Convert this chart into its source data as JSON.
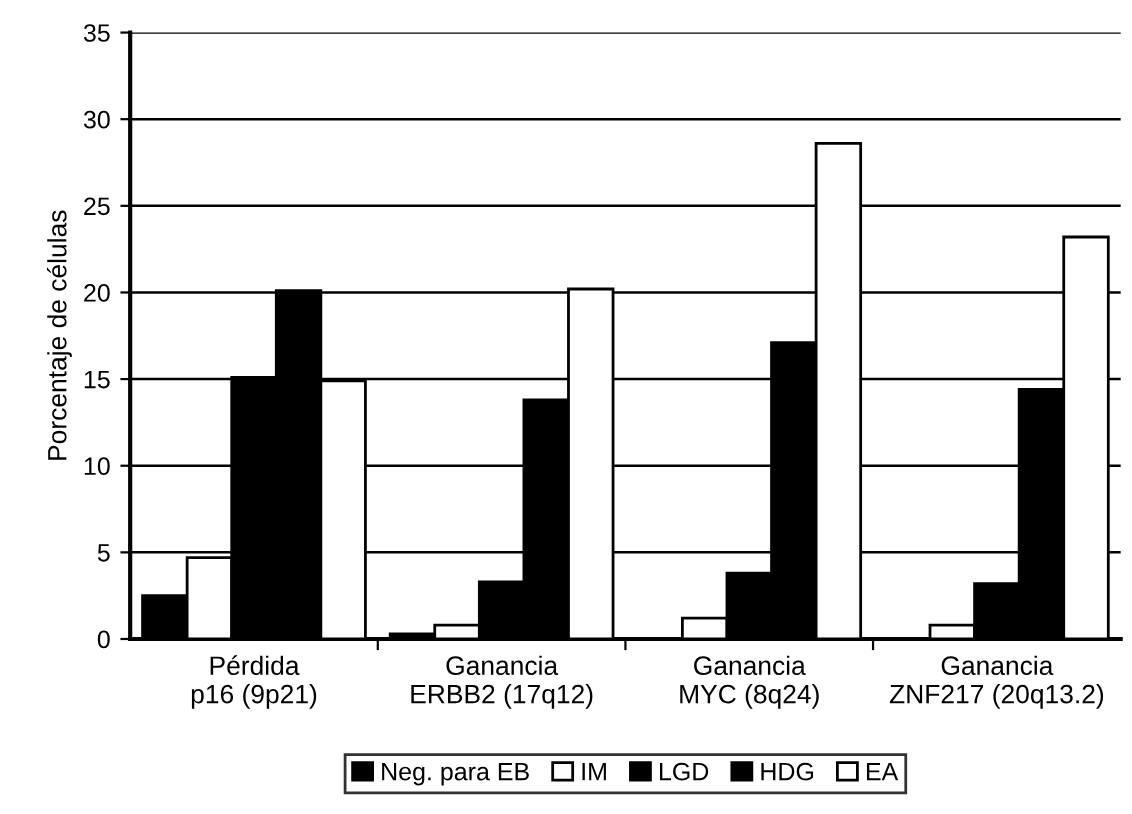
{
  "chart_data": {
    "type": "bar",
    "ylabel": "Porcentaje de células",
    "categories": [
      "Pérdida\np16 (9p21)",
      "Ganancia\nERBB2 (17q12)",
      "Ganancia\nMYC (8q24)",
      "Ganancia\nZNF217 (20q13.2)"
    ],
    "series": [
      {
        "name": "Neg. para EB",
        "color": "#000000",
        "values": [
          2.5,
          0.3,
          0,
          0
        ]
      },
      {
        "name": "IM",
        "color": "#ffffff",
        "values": [
          4.7,
          0.8,
          1.2,
          0.8
        ]
      },
      {
        "name": "LGD",
        "color": "#000000",
        "values": [
          15.1,
          3.3,
          3.8,
          3.2
        ]
      },
      {
        "name": "HDG",
        "color": "#000000",
        "values": [
          20.1,
          13.8,
          17.1,
          14.4
        ]
      },
      {
        "name": "EA",
        "color": "#ffffff",
        "values": [
          14.9,
          20.2,
          28.6,
          23.2
        ]
      }
    ],
    "ylim": [
      0,
      35
    ],
    "yticks": [
      0,
      5,
      10,
      15,
      20,
      25,
      30,
      35
    ],
    "grid": "y",
    "legend": "bottom"
  }
}
